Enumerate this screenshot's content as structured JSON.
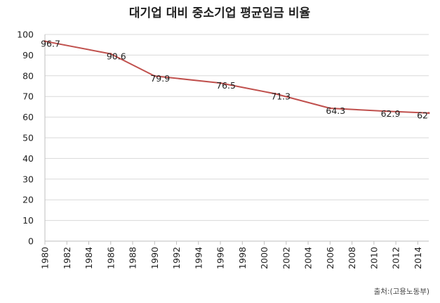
{
  "chart_data": {
    "type": "line",
    "title": "대기업 대비 중소기업 평균임금 비율",
    "xlabel": "",
    "ylabel": "",
    "xlim": [
      1980,
      2015
    ],
    "ylim": [
      0,
      100
    ],
    "y_ticks": [
      0,
      10,
      20,
      30,
      40,
      50,
      60,
      70,
      80,
      90,
      100
    ],
    "x_ticks": [
      1980,
      1982,
      1984,
      1986,
      1988,
      1990,
      1992,
      1994,
      1996,
      1998,
      2000,
      2002,
      2004,
      2006,
      2008,
      2010,
      2012,
      2014
    ],
    "grid": "horizontal",
    "legend": "none",
    "series": [
      {
        "color": "#c0504d",
        "x": [
          1980,
          1986,
          1990,
          1996,
          2001,
          2006,
          2011,
          2015
        ],
        "values": [
          96.7,
          90.6,
          79.9,
          76.5,
          71.3,
          64.3,
          62.9,
          62
        ]
      }
    ],
    "source": "출처:(고용노동부)"
  }
}
